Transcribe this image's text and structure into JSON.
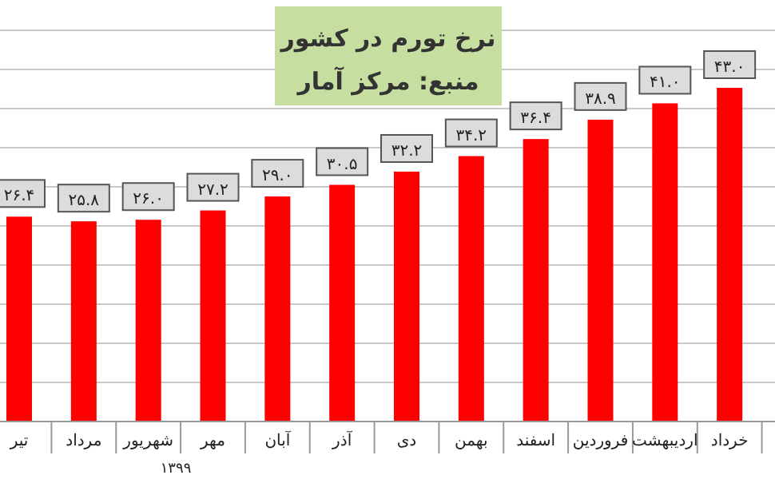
{
  "chart_data": {
    "type": "bar",
    "title": "نرخ تورم در کشور",
    "subtitle": "منبع: مرکز آمار",
    "categories": [
      "تیر",
      "مرداد",
      "شهریور",
      "مهر",
      "آبان",
      "آذر",
      "دی",
      "بهمن",
      "اسفند",
      "فروردین",
      "اردیبهشت",
      "خرداد"
    ],
    "values": [
      26.4,
      25.8,
      26.0,
      27.2,
      29.0,
      30.5,
      32.2,
      34.2,
      36.4,
      38.9,
      41.0,
      43.0
    ],
    "value_labels": [
      "۲۶.۴",
      "۲۵.۸",
      "۲۶.۰",
      "۲۷.۲",
      "۲۹.۰",
      "۳۰.۵",
      "۳۲.۲",
      "۳۴.۲",
      "۳۶.۴",
      "۳۸.۹",
      "۴۱.۰",
      "۴۳.۰"
    ],
    "color": "#ff0000",
    "grid": "y",
    "annotations": [
      "۱۳۹۹"
    ]
  }
}
